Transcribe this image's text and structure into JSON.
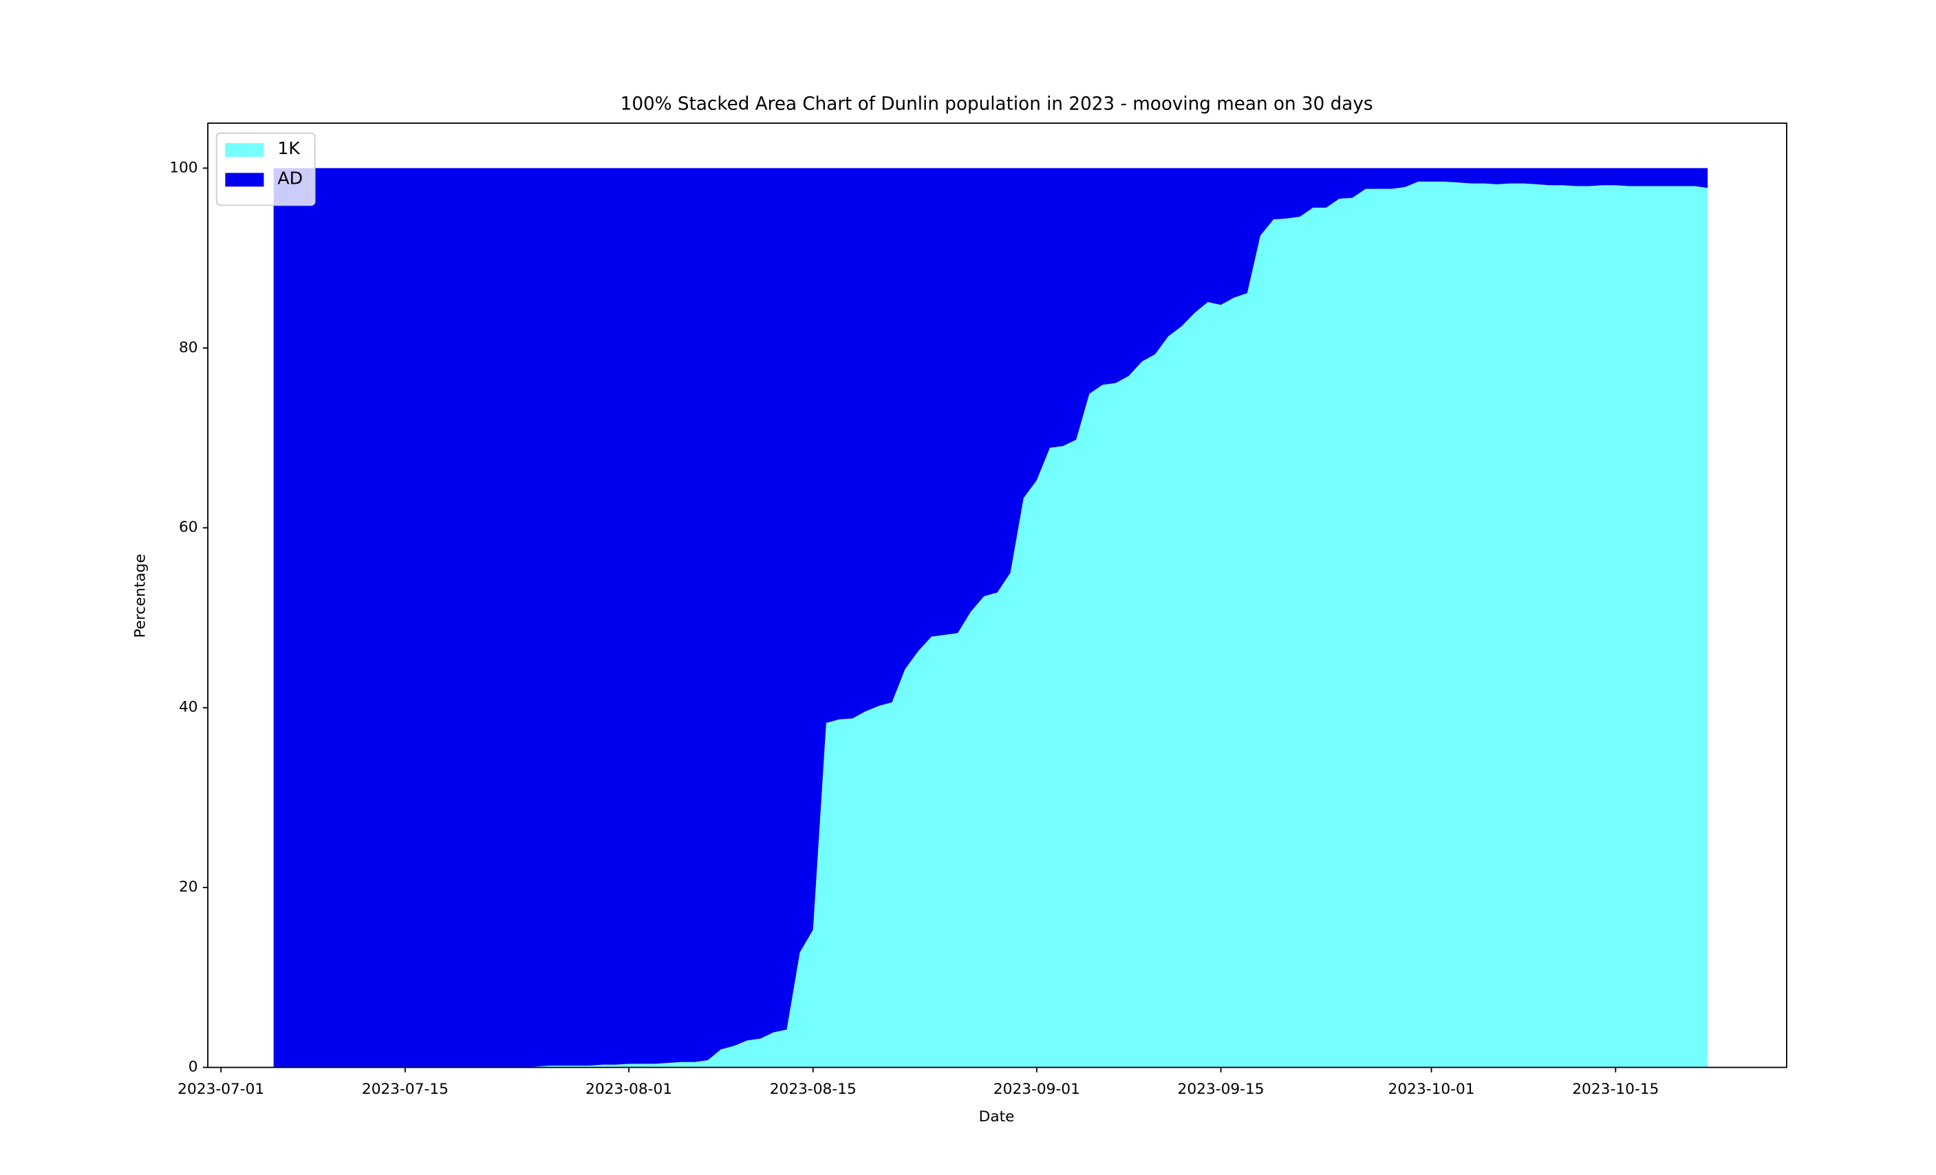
{
  "chart_data": {
    "type": "stacked_area_100",
    "title": "100% Stacked Area Chart of Dunlin population in 2023 - mooving mean on 30 days",
    "xlabel": "Date",
    "ylabel": "Percentage",
    "x": [
      "2023-07-05",
      "2023-07-06",
      "2023-07-07",
      "2023-07-08",
      "2023-07-09",
      "2023-07-10",
      "2023-07-11",
      "2023-07-12",
      "2023-07-13",
      "2023-07-14",
      "2023-07-15",
      "2023-07-16",
      "2023-07-17",
      "2023-07-18",
      "2023-07-19",
      "2023-07-20",
      "2023-07-21",
      "2023-07-22",
      "2023-07-23",
      "2023-07-24",
      "2023-07-25",
      "2023-07-26",
      "2023-07-27",
      "2023-07-28",
      "2023-07-29",
      "2023-07-30",
      "2023-07-31",
      "2023-08-01",
      "2023-08-02",
      "2023-08-03",
      "2023-08-04",
      "2023-08-05",
      "2023-08-06",
      "2023-08-07",
      "2023-08-08",
      "2023-08-09",
      "2023-08-10",
      "2023-08-11",
      "2023-08-12",
      "2023-08-13",
      "2023-08-14",
      "2023-08-15",
      "2023-08-16",
      "2023-08-17",
      "2023-08-18",
      "2023-08-19",
      "2023-08-20",
      "2023-08-21",
      "2023-08-22",
      "2023-08-23",
      "2023-08-24",
      "2023-08-25",
      "2023-08-26",
      "2023-08-27",
      "2023-08-28",
      "2023-08-29",
      "2023-08-30",
      "2023-08-31",
      "2023-09-01",
      "2023-09-02",
      "2023-09-03",
      "2023-09-04",
      "2023-09-05",
      "2023-09-06",
      "2023-09-07",
      "2023-09-08",
      "2023-09-09",
      "2023-09-10",
      "2023-09-11",
      "2023-09-12",
      "2023-09-13",
      "2023-09-14",
      "2023-09-15",
      "2023-09-16",
      "2023-09-17",
      "2023-09-18",
      "2023-09-19",
      "2023-09-20",
      "2023-09-21",
      "2023-09-22",
      "2023-09-23",
      "2023-09-24",
      "2023-09-25",
      "2023-09-26",
      "2023-09-27",
      "2023-09-28",
      "2023-09-29",
      "2023-09-30",
      "2023-10-01",
      "2023-10-02",
      "2023-10-03",
      "2023-10-04",
      "2023-10-05",
      "2023-10-06",
      "2023-10-07",
      "2023-10-08",
      "2023-10-09",
      "2023-10-10",
      "2023-10-11",
      "2023-10-12",
      "2023-10-13",
      "2023-10-14",
      "2023-10-15",
      "2023-10-16",
      "2023-10-17",
      "2023-10-18",
      "2023-10-19",
      "2023-10-20",
      "2023-10-21",
      "2023-10-22"
    ],
    "series": [
      {
        "name": "1K",
        "color": "#74feff",
        "values": [
          0,
          0,
          0,
          0,
          0,
          0,
          0,
          0,
          0,
          0,
          0,
          0,
          0,
          0,
          0,
          0,
          0,
          0,
          0,
          0,
          0.1,
          0.2,
          0.2,
          0.2,
          0.2,
          0.3,
          0.3,
          0.4,
          0.4,
          0.4,
          0.5,
          0.6,
          0.6,
          0.8,
          2.0,
          2.4,
          3.0,
          3.2,
          3.9,
          4.2,
          12.8,
          15.3,
          38.3,
          38.7,
          38.8,
          39.6,
          40.2,
          40.6,
          44.3,
          46.3,
          47.9,
          48.1,
          48.3,
          50.7,
          52.4,
          52.8,
          55.0,
          63.3,
          65.3,
          68.9,
          69.1,
          69.8,
          74.9,
          75.9,
          76.1,
          76.9,
          78.5,
          79.3,
          81.3,
          82.4,
          83.9,
          85.1,
          84.8,
          85.6,
          86.1,
          92.5,
          94.3,
          94.4,
          94.6,
          95.6,
          95.6,
          96.6,
          96.7,
          97.7,
          97.7,
          97.7,
          97.9,
          98.5,
          98.5,
          98.5,
          98.4,
          98.3,
          98.3,
          98.2,
          98.3,
          98.3,
          98.2,
          98.1,
          98.1,
          98.0,
          98.0,
          98.1,
          98.1,
          98.0,
          98.0,
          98.0,
          98.0,
          98.0,
          98.0,
          97.8
        ]
      },
      {
        "name": "AD",
        "color": "#0000f0",
        "values": [
          100,
          100,
          100,
          100,
          100,
          100,
          100,
          100,
          100,
          100,
          100,
          100,
          100,
          100,
          100,
          100,
          100,
          100,
          100,
          100,
          99.9,
          99.8,
          99.8,
          99.8,
          99.8,
          99.7,
          99.7,
          99.6,
          99.6,
          99.6,
          99.5,
          99.4,
          99.4,
          99.2,
          98.0,
          97.6,
          97.0,
          96.8,
          96.1,
          95.8,
          87.2,
          84.7,
          61.7,
          61.3,
          61.2,
          60.4,
          59.8,
          59.4,
          55.7,
          53.7,
          52.1,
          51.9,
          51.7,
          49.3,
          47.6,
          47.2,
          45.0,
          36.7,
          34.7,
          31.1,
          30.9,
          30.2,
          25.1,
          24.1,
          23.9,
          23.1,
          21.5,
          20.7,
          18.7,
          17.6,
          16.1,
          14.9,
          15.2,
          14.4,
          13.9,
          7.5,
          5.7,
          5.6,
          5.4,
          4.4,
          4.4,
          3.4,
          3.3,
          2.3,
          2.3,
          2.3,
          2.1,
          1.5,
          1.5,
          1.5,
          1.6,
          1.7,
          1.7,
          1.8,
          1.7,
          1.7,
          1.8,
          1.9,
          1.9,
          2.0,
          2.0,
          1.9,
          1.9,
          2.0,
          2.0,
          2.0,
          2.0,
          2.0,
          2.0,
          2.2
        ]
      }
    ],
    "xlim": [
      "2023-06-30",
      "2023-10-28"
    ],
    "xticks": [
      "2023-07-01",
      "2023-07-15",
      "2023-08-01",
      "2023-08-15",
      "2023-09-01",
      "2023-09-15",
      "2023-10-01",
      "2023-10-15"
    ],
    "ylim": [
      0,
      105
    ],
    "yticks": [
      0,
      20,
      40,
      60,
      80,
      100
    ],
    "legend": "upper left"
  }
}
